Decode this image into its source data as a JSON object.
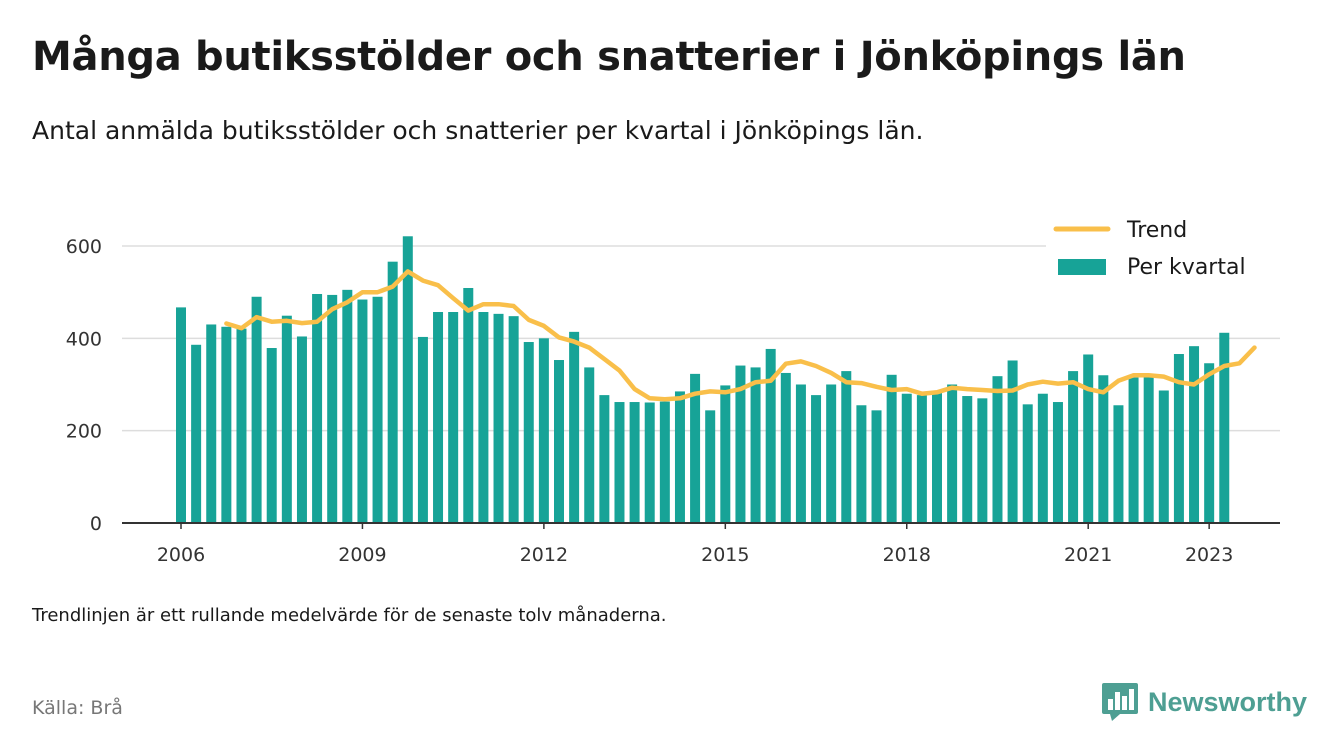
{
  "title": "Många butiksstölder och snatterier i Jönköpings län",
  "subtitle": "Antal anmälda butiksstölder och snatterier per kvartal i Jönköpings län.",
  "note": "Trendlinjen är ett rullande medelvärde för de senaste tolv månaderna.",
  "source": "Källa: Brå",
  "brand": {
    "name": "Newsworthy",
    "icon": "newsworthy-logo-icon"
  },
  "colors": {
    "bar": "#17a397",
    "trend": "#f9bf4a",
    "axis": "#333333",
    "grid": "#dddddd"
  },
  "chart_data": {
    "type": "bar",
    "x_start": "2006 Q1",
    "x_ticks": [
      "2006",
      "2009",
      "2012",
      "2015",
      "2018",
      "2021",
      "2023"
    ],
    "y_ticks": [
      "0",
      "200",
      "400",
      "600"
    ],
    "ylim": [
      0,
      700
    ],
    "grid": true,
    "legend_position": "top-right",
    "series": [
      {
        "name": "Per kvartal",
        "type": "bar",
        "values": [
          467,
          386,
          430,
          425,
          421,
          490,
          379,
          449,
          404,
          496,
          494,
          505,
          484,
          490,
          566,
          621,
          403,
          457,
          457,
          509,
          457,
          453,
          448,
          392,
          400,
          353,
          414,
          337,
          277,
          262,
          262,
          261,
          263,
          285,
          323,
          244,
          298,
          341,
          337,
          377,
          325,
          300,
          277,
          300,
          329,
          255,
          244,
          321,
          280,
          277,
          285,
          300,
          275,
          270,
          318,
          352,
          257,
          280,
          262,
          329,
          365,
          320,
          255,
          315,
          323,
          287,
          366,
          383,
          346,
          412
        ]
      },
      {
        "name": "Trend",
        "type": "line",
        "start_index": 3,
        "values": [
          432,
          422,
          446,
          436,
          438,
          433,
          436,
          463,
          478,
          500,
          500,
          512,
          545,
          525,
          515,
          487,
          460,
          474,
          474,
          470,
          440,
          427,
          402,
          393,
          380,
          355,
          330,
          290,
          270,
          268,
          270,
          280,
          285,
          283,
          290,
          305,
          308,
          345,
          350,
          340,
          325,
          305,
          303,
          295,
          288,
          290,
          280,
          283,
          293,
          290,
          288,
          286,
          287,
          300,
          306,
          302,
          305,
          290,
          283,
          308,
          320,
          320,
          317,
          305,
          300,
          322,
          340,
          346,
          380
        ]
      }
    ]
  }
}
